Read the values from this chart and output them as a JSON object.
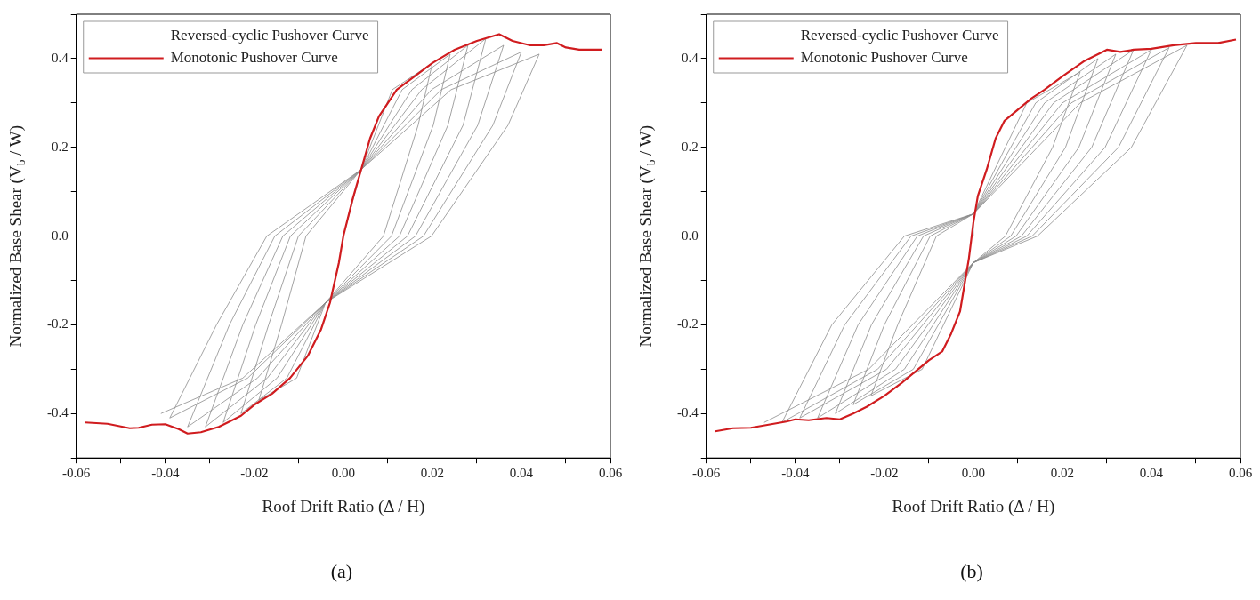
{
  "chart_data": [
    {
      "type": "line",
      "xlabel": "Roof Drift Ratio (Δ / H)",
      "ylabel": "Normalized Base Shear (V$_{b}$ / W)",
      "xlim": [
        -0.06,
        0.06
      ],
      "ylim": [
        -0.5,
        0.5
      ],
      "xticks": [
        -0.06,
        {
          "value": -0.05,
          "label": null
        },
        -0.04,
        {
          "value": -0.03,
          "label": null
        },
        -0.02,
        {
          "value": -0.01,
          "label": null
        },
        {
          "value": 0,
          "label": "0.00"
        },
        {
          "value": 0.01,
          "label": null
        },
        0.02,
        {
          "value": 0.03,
          "label": null
        },
        0.04,
        {
          "value": 0.05,
          "label": null
        },
        0.06
      ],
      "yticks": [
        {
          "value": -0.5,
          "label": null
        },
        -0.4,
        {
          "value": -0.3,
          "label": null
        },
        -0.2,
        {
          "value": -0.1,
          "label": null
        },
        {
          "value": 0,
          "label": "0.0"
        },
        {
          "value": 0.1,
          "label": null
        },
        0.2,
        {
          "value": 0.3,
          "label": null
        },
        0.4,
        {
          "value": 0.5,
          "label": null
        }
      ],
      "grid": false,
      "legend": "top left",
      "marker": "none",
      "annotations": [
        "(a)"
      ],
      "series": [
        {
          "name": "Reversed-cyclic Pushover Curve",
          "color": "#8c8c8c",
          "x": [
            0,
            0.004,
            0.011,
            0.02,
            0.0168,
            0.009,
            -0.004,
            -0.0105,
            -0.019,
            -0.0139,
            -0.0084,
            0.004,
            0.0132,
            0.024,
            0.0202,
            0.0108,
            -0.004,
            -0.0127,
            -0.023,
            -0.0168,
            -0.0101,
            0.004,
            0.0154,
            0.028,
            0.0235,
            0.0126,
            -0.004,
            -0.0149,
            -0.027,
            -0.0197,
            -0.0119,
            0.004,
            0.0176,
            0.032,
            0.0269,
            0.0144,
            -0.004,
            -0.0171,
            -0.031,
            -0.0226,
            -0.0136,
            0.004,
            0.0198,
            0.036,
            0.0302,
            0.0162,
            -0.004,
            -0.0193,
            -0.035,
            -0.0256,
            -0.0154,
            0.004,
            0.022,
            0.04,
            0.0336,
            0.018,
            -0.004,
            -0.0215,
            -0.039,
            -0.0285,
            -0.0172,
            0.004,
            0.0242,
            0.044,
            0.037,
            0.0198,
            -0.004,
            -0.0226,
            -0.041
          ],
          "values": [
            0,
            0.15,
            0.33,
            0.39,
            0.25,
            0,
            -0.15,
            -0.32,
            -0.37,
            -0.2,
            0,
            0.15,
            0.33,
            0.41,
            0.25,
            0,
            -0.15,
            -0.32,
            -0.4,
            -0.2,
            0,
            0.15,
            0.33,
            0.43,
            0.25,
            0,
            -0.15,
            -0.32,
            -0.42,
            -0.2,
            0,
            0.15,
            0.33,
            0.445,
            0.25,
            0,
            -0.15,
            -0.32,
            -0.43,
            -0.2,
            0,
            0.15,
            0.33,
            0.43,
            0.25,
            0,
            -0.15,
            -0.32,
            -0.43,
            -0.2,
            0,
            0.15,
            0.33,
            0.415,
            0.25,
            0,
            -0.15,
            -0.32,
            -0.41,
            -0.2,
            0,
            0.15,
            0.33,
            0.41,
            0.25,
            0,
            -0.15,
            -0.32,
            -0.4
          ]
        },
        {
          "name": "Monotonic Pushover Curve",
          "color": "#d01c1f",
          "x": [
            -0.058,
            -0.053,
            -0.048,
            -0.046,
            -0.043,
            -0.04,
            -0.037,
            -0.035,
            -0.032,
            -0.028,
            -0.023,
            -0.02,
            -0.016,
            -0.012,
            -0.008,
            -0.005,
            -0.003,
            -0.001,
            0,
            0.002,
            0.004,
            0.006,
            0.008,
            0.01,
            0.012,
            0.016,
            0.02,
            0.025,
            0.03,
            0.035,
            0.038,
            0.042,
            0.045,
            0.048,
            0.05,
            0.053,
            0.058
          ],
          "values": [
            -0.42,
            -0.423,
            -0.433,
            -0.432,
            -0.425,
            -0.424,
            -0.435,
            -0.445,
            -0.442,
            -0.43,
            -0.405,
            -0.38,
            -0.355,
            -0.32,
            -0.27,
            -0.21,
            -0.15,
            -0.06,
            0,
            0.08,
            0.15,
            0.22,
            0.27,
            0.3,
            0.33,
            0.36,
            0.39,
            0.42,
            0.44,
            0.455,
            0.44,
            0.43,
            0.43,
            0.435,
            0.425,
            0.42,
            0.42
          ]
        }
      ]
    },
    {
      "type": "line",
      "xlabel": "Roof Drift Ratio (Δ / H)",
      "ylabel": "Normalized Base Shear (V$_{b}$ / W)",
      "xlim": [
        -0.06,
        0.06
      ],
      "ylim": [
        -0.5,
        0.5
      ],
      "xticks": [
        -0.06,
        {
          "value": -0.05,
          "label": null
        },
        -0.04,
        {
          "value": -0.03,
          "label": null
        },
        -0.02,
        {
          "value": -0.01,
          "label": null
        },
        {
          "value": 0,
          "label": "0.00"
        },
        {
          "value": 0.01,
          "label": null
        },
        0.02,
        {
          "value": 0.03,
          "label": null
        },
        0.04,
        {
          "value": 0.05,
          "label": null
        },
        0.06
      ],
      "yticks": [
        {
          "value": -0.5,
          "label": null
        },
        -0.4,
        {
          "value": -0.3,
          "label": null
        },
        -0.2,
        {
          "value": -0.1,
          "label": null
        },
        {
          "value": 0,
          "label": "0.0"
        },
        {
          "value": 0.1,
          "label": null
        },
        0.2,
        {
          "value": 0.3,
          "label": null
        },
        0.4,
        {
          "value": 0.5,
          "label": null
        }
      ],
      "grid": false,
      "legend": "top left",
      "marker": "none",
      "annotations": [
        "(b)"
      ],
      "series": [
        {
          "name": "Reversed-cyclic Pushover Curve",
          "color": "#8c8c8c",
          "x": [
            0,
            0,
            0.012,
            0.024,
            0.0178,
            0.0072,
            0,
            -0.0115,
            -0.023,
            -0.017,
            -0.0083,
            0,
            0.014,
            0.028,
            0.0207,
            0.0084,
            0,
            -0.0135,
            -0.027,
            -0.02,
            -0.0097,
            0,
            0.016,
            0.032,
            0.0237,
            0.0096,
            0,
            -0.0155,
            -0.031,
            -0.0229,
            -0.0112,
            0,
            0.018,
            0.036,
            0.0266,
            0.0108,
            0,
            -0.0175,
            -0.035,
            -0.0259,
            -0.0126,
            0,
            0.02,
            0.04,
            0.0296,
            0.012,
            0,
            -0.0195,
            -0.039,
            -0.0289,
            -0.014,
            0,
            0.022,
            0.044,
            0.0326,
            0.0132,
            0,
            -0.0215,
            -0.043,
            -0.0318,
            -0.0155,
            0,
            0.024,
            0.048,
            0.0355,
            0.0144,
            0,
            -0.0235,
            -0.047
          ],
          "values": [
            0,
            0.05,
            0.3,
            0.37,
            0.2,
            0,
            -0.06,
            -0.3,
            -0.36,
            -0.2,
            0,
            0.05,
            0.3,
            0.4,
            0.2,
            0,
            -0.06,
            -0.3,
            -0.38,
            -0.2,
            0,
            0.05,
            0.3,
            0.41,
            0.2,
            0,
            -0.06,
            -0.3,
            -0.4,
            -0.2,
            0,
            0.05,
            0.3,
            0.42,
            0.2,
            0,
            -0.06,
            -0.3,
            -0.41,
            -0.2,
            0,
            0.05,
            0.3,
            0.42,
            0.2,
            0,
            -0.06,
            -0.3,
            -0.41,
            -0.2,
            0,
            0.05,
            0.3,
            0.425,
            0.2,
            0,
            -0.06,
            -0.3,
            -0.42,
            -0.2,
            0,
            0.05,
            0.3,
            0.43,
            0.2,
            0,
            -0.06,
            -0.3,
            -0.42
          ]
        },
        {
          "name": "Monotonic Pushover Curve",
          "color": "#d01c1f",
          "x": [
            -0.058,
            -0.054,
            -0.05,
            -0.046,
            -0.042,
            -0.04,
            -0.037,
            -0.033,
            -0.03,
            -0.027,
            -0.024,
            -0.02,
            -0.016,
            -0.013,
            -0.01,
            -0.007,
            -0.005,
            -0.003,
            -0.002,
            -0.001,
            0,
            0.001,
            0.003,
            0.005,
            0.007,
            0.01,
            0.013,
            0.016,
            0.02,
            0.025,
            0.03,
            0.033,
            0.036,
            0.04,
            0.045,
            0.05,
            0.055,
            0.059
          ],
          "values": [
            -0.44,
            -0.433,
            -0.432,
            -0.425,
            -0.418,
            -0.413,
            -0.415,
            -0.41,
            -0.413,
            -0.4,
            -0.385,
            -0.36,
            -0.33,
            -0.305,
            -0.28,
            -0.26,
            -0.22,
            -0.17,
            -0.11,
            -0.05,
            0.03,
            0.09,
            0.15,
            0.22,
            0.26,
            0.285,
            0.31,
            0.33,
            0.36,
            0.395,
            0.42,
            0.415,
            0.42,
            0.422,
            0.43,
            0.435,
            0.435,
            0.443
          ]
        }
      ]
    }
  ]
}
